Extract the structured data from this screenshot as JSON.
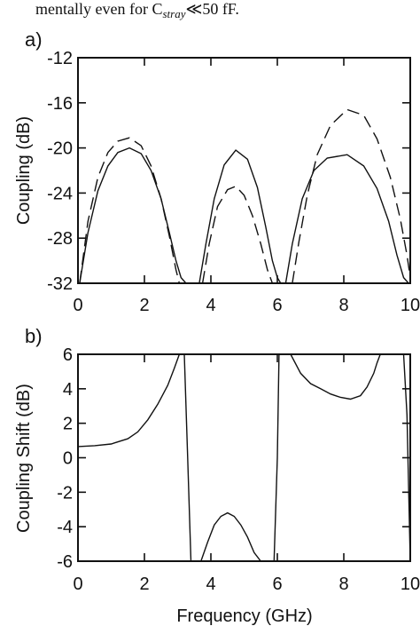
{
  "caption_fragment": "mentally even for C",
  "caption_subscript": "stray",
  "caption_tail": "≪50 fF.",
  "chart_data": [
    {
      "type": "line",
      "panel_label": "a)",
      "xlabel": "",
      "ylabel": "Coupling (dB)",
      "xlim": [
        0,
        10
      ],
      "ylim": [
        -32,
        -12
      ],
      "xticks": [
        "0",
        "2",
        "4",
        "6",
        "8",
        "10"
      ],
      "yticks": [
        "-12",
        "-16",
        "-20",
        "-24",
        "-28",
        "-32"
      ],
      "grid": false,
      "series": [
        {
          "style": "solid",
          "x": [
            0.05,
            0.3,
            0.6,
            0.9,
            1.2,
            1.55,
            1.9,
            2.2,
            2.5,
            2.75,
            2.95,
            3.1,
            3.25,
            null,
            3.65,
            3.85,
            4.1,
            4.4,
            4.75,
            5.1,
            5.4,
            5.65,
            5.85,
            6.0,
            6.1,
            null,
            6.25,
            6.45,
            6.75,
            7.1,
            7.5,
            8.1,
            8.6,
            9.0,
            9.35,
            9.6,
            9.8,
            9.95
          ],
          "y": [
            -32,
            -27.5,
            -23.8,
            -21.6,
            -20.4,
            -20.0,
            -20.5,
            -22.0,
            -24.5,
            -27.5,
            -30,
            -31.5,
            -32,
            null,
            -32,
            -28.5,
            -24.5,
            -21.5,
            -20.2,
            -21.0,
            -23.5,
            -27,
            -30,
            -31.5,
            -32,
            null,
            -32,
            -28.5,
            -24.5,
            -22,
            -20.9,
            -20.6,
            -21.6,
            -23.6,
            -26.5,
            -29.5,
            -31.5,
            -32
          ]
        },
        {
          "style": "dashed",
          "x": [
            0.05,
            0.3,
            0.6,
            0.9,
            1.2,
            1.55,
            1.9,
            2.2,
            2.5,
            2.75,
            2.95,
            3.05,
            null,
            3.75,
            3.95,
            4.2,
            4.5,
            4.75,
            5.0,
            5.25,
            5.5,
            5.7,
            5.85,
            null,
            6.45,
            6.65,
            6.9,
            7.2,
            7.6,
            8.1,
            8.6,
            9.0,
            9.4,
            9.7,
            9.9,
            10.0
          ],
          "y": [
            -32,
            -26.5,
            -22.6,
            -20.4,
            -19.4,
            -19.1,
            -19.8,
            -21.6,
            -24.5,
            -27.8,
            -30.8,
            -32,
            null,
            -32,
            -28.5,
            -25.2,
            -23.7,
            -23.4,
            -24.2,
            -26.0,
            -28.5,
            -30.8,
            -32,
            null,
            -32,
            -28.3,
            -24.2,
            -20.6,
            -18.0,
            -16.6,
            -17.1,
            -19.2,
            -22.6,
            -26.3,
            -29.5,
            -31.5
          ]
        }
      ]
    },
    {
      "type": "line",
      "panel_label": "b)",
      "xlabel": "Frequency (GHz)",
      "ylabel": "Coupling Shift (dB)",
      "xlim": [
        0,
        10
      ],
      "ylim": [
        -6,
        6
      ],
      "xticks": [
        "0",
        "2",
        "4",
        "6",
        "8",
        "10"
      ],
      "yticks": [
        "6",
        "4",
        "2",
        "0",
        "-2",
        "-4",
        "-6"
      ],
      "grid": false,
      "series": [
        {
          "style": "solid",
          "x": [
            0.0,
            0.5,
            1.0,
            1.5,
            1.8,
            2.1,
            2.4,
            2.7,
            2.9,
            3.05,
            3.15,
            3.2,
            3.3,
            3.4,
            3.5,
            3.6,
            3.7,
            3.9,
            4.1,
            4.3,
            4.5,
            4.7,
            4.9,
            5.1,
            5.3,
            5.5,
            5.6,
            5.7,
            5.8,
            5.9,
            6.0,
            6.05,
            6.1,
            6.2,
            6.4,
            6.7,
            7.0,
            7.3,
            7.6,
            7.9,
            8.2,
            8.5,
            8.7,
            8.9,
            9.0,
            9.1,
            9.5,
            9.6,
            9.7,
            9.8,
            9.9,
            10.0
          ],
          "y": [
            0.65,
            0.7,
            0.8,
            1.1,
            1.5,
            2.2,
            3.1,
            4.2,
            5.2,
            6,
            6,
            6,
            0,
            -6,
            -6,
            -6,
            -6,
            -4.9,
            -3.9,
            -3.4,
            -3.2,
            -3.4,
            -3.9,
            -4.6,
            -5.5,
            -6,
            -6,
            -6,
            -6,
            -6,
            0,
            6,
            6,
            6,
            6,
            4.9,
            4.3,
            4.0,
            3.7,
            3.5,
            3.4,
            3.6,
            4.1,
            4.9,
            5.5,
            6,
            6,
            6,
            6,
            6,
            2.5,
            -6
          ],
          "note": ""
        }
      ]
    }
  ]
}
